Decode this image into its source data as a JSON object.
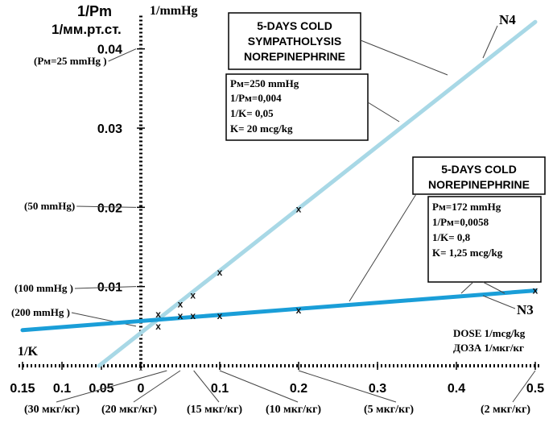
{
  "chart_data": {
    "type": "line",
    "title": "",
    "xlabel": "DOSE 1/mcg/kg",
    "xlabel_ru": "ДОЗА 1/мкг/кг",
    "ylabel": "1/Pm",
    "ylabel_ru": "1/мм.рт.ст.",
    "ylabel_unit": "1/mmHg",
    "x_intercept_label": "1/K",
    "xlim": [
      -0.15,
      0.5
    ],
    "ylim": [
      -0.001,
      0.045
    ],
    "x_ticks": [
      {
        "value": -0.15,
        "label": "0.15"
      },
      {
        "value": -0.1,
        "label": "0.1"
      },
      {
        "value": -0.05,
        "label": "0.05"
      },
      {
        "value": 0,
        "label": "0"
      },
      {
        "value": 0.1,
        "label": "0.1"
      },
      {
        "value": 0.2,
        "label": "0.2"
      },
      {
        "value": 0.3,
        "label": "0.3"
      },
      {
        "value": 0.4,
        "label": "0.4"
      },
      {
        "value": 0.5,
        "label": "0.5"
      }
    ],
    "y_ticks": [
      {
        "value": 0.01,
        "label": "0.01"
      },
      {
        "value": 0.02,
        "label": "0.02"
      },
      {
        "value": 0.03,
        "label": "0.03"
      },
      {
        "value": 0.04,
        "label": "0.04"
      }
    ],
    "y_annotations": [
      {
        "value": 0.04,
        "label": "(Pм=25 mmHg    )"
      },
      {
        "value": 0.02,
        "label": "(50  mmHg)"
      },
      {
        "value": 0.01,
        "label": "(100  mmHg )"
      },
      {
        "value": 0.005,
        "label": "(200 mmHg    )"
      }
    ],
    "x_annotations": [
      {
        "value": 0.033,
        "label": "(30 мкг/кг)"
      },
      {
        "value": 0.05,
        "label": "(20 мкг/кг)"
      },
      {
        "value": 0.067,
        "label": "(15 мкг/кг)"
      },
      {
        "value": 0.1,
        "label": "(10 мкг/кг)"
      },
      {
        "value": 0.2,
        "label": "(5 мкг/кг)"
      },
      {
        "value": 0.5,
        "label": "(2 мкг/кг)"
      }
    ],
    "series": [
      {
        "name": "N4",
        "color": "#a8d8e6",
        "line_x": [
          -0.053,
          0.5
        ],
        "line_y": [
          0,
          0.0434
        ],
        "points_x": [
          0.022,
          0.05,
          0.066,
          0.1,
          0.2
        ],
        "points_y": [
          0.0065,
          0.0078,
          0.0089,
          0.0118,
          0.0198
        ],
        "annotation_title": [
          "5-DAYS COLD",
          "SYMPATHOLYSIS",
          "NOREPINEPHRINE"
        ],
        "params": [
          "Pм=250  mmHg",
          "1/Pм=0,004",
          "1/K=  0,05",
          "K= 20 mcg/kg"
        ]
      },
      {
        "name": "N3",
        "color": "#1a9ed8",
        "line_x": [
          -0.15,
          0.5
        ],
        "line_y": [
          0.0045,
          0.0095
        ],
        "points_x": [
          0.022,
          0.05,
          0.066,
          0.1,
          0.2,
          0.5
        ],
        "points_y": [
          0.005,
          0.0063,
          0.0063,
          0.0063,
          0.007,
          0.0095
        ],
        "annotation_title": [
          "5-DAYS COLD",
          "NOREPINEPHRINE"
        ],
        "params": [
          "Pм=172  mmHg",
          "1/Pм=0,0058",
          "1/K=  0,8",
          "K= 1,25 mcg/kg"
        ]
      }
    ]
  }
}
